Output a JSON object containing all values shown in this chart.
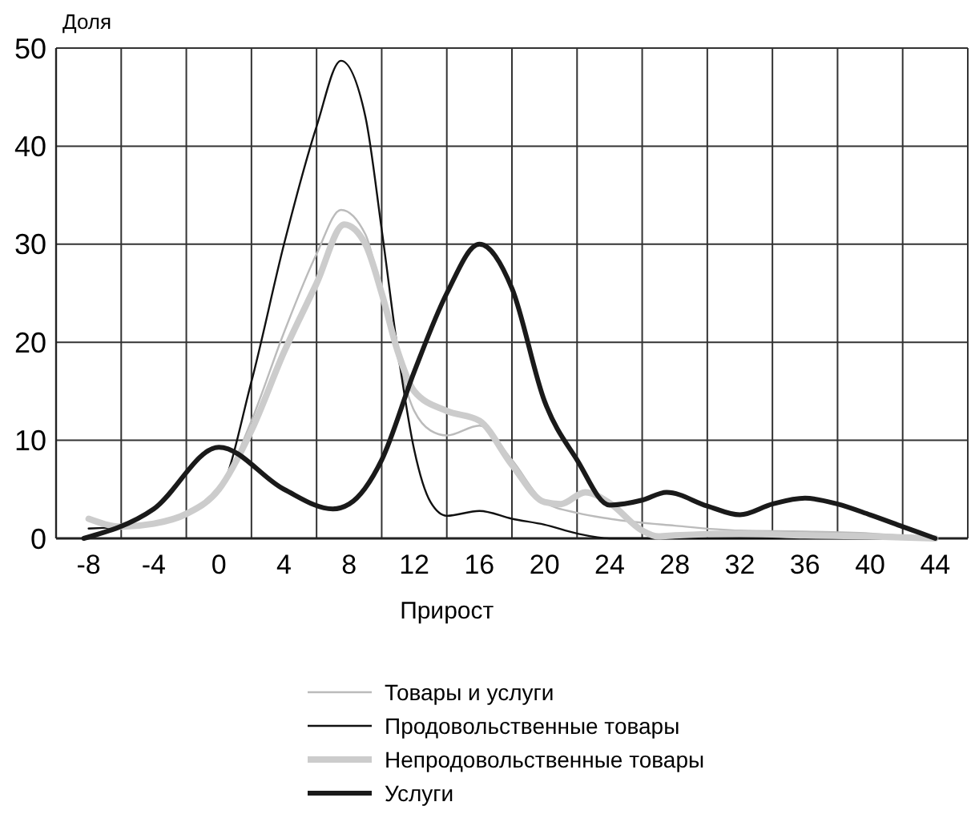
{
  "chart_data": {
    "type": "line",
    "xlabel": "Прирост",
    "ylabel": "Доля",
    "xlim": [
      -10,
      46
    ],
    "xticks": [
      -8,
      -4,
      0,
      4,
      8,
      12,
      16,
      20,
      24,
      28,
      32,
      36,
      40,
      44,
      {
        "value": -6,
        "label": null
      },
      {
        "value": -2,
        "label": null
      },
      {
        "value": 2,
        "label": null
      },
      {
        "value": 6,
        "label": null
      },
      {
        "value": 10,
        "label": null
      },
      {
        "value": 14,
        "label": null
      },
      {
        "value": 18,
        "label": null
      },
      {
        "value": 22,
        "label": null
      },
      {
        "value": 26,
        "label": null
      },
      {
        "value": 30,
        "label": null
      },
      {
        "value": 34,
        "label": null
      },
      {
        "value": 38,
        "label": null
      },
      {
        "value": 42,
        "label": null
      }
    ],
    "ylim": [
      0,
      50
    ],
    "yticks": [
      0,
      10,
      20,
      30,
      40,
      50
    ],
    "grid": true,
    "legend": "bottom",
    "line_style": "solid",
    "marker": "none",
    "series": [
      {
        "name": "Товары и услуги",
        "color": "#bbbbbb",
        "x": [
          -8,
          -4,
          0,
          2,
          4,
          6,
          7.5,
          9,
          10,
          12,
          13,
          14,
          16,
          18,
          20,
          22,
          24,
          28,
          32,
          36,
          40,
          44
        ],
        "values": [
          1,
          1.5,
          5,
          12,
          21,
          29,
          33.5,
          31,
          25,
          13,
          11,
          10.5,
          11.5,
          8,
          3.7,
          2.6,
          2,
          1.3,
          0.8,
          0.7,
          0.5,
          0
        ]
      },
      {
        "name": "Продовольственные товары",
        "color": "#111111",
        "x": [
          -8,
          -4,
          0,
          2,
          4,
          6,
          7.5,
          9,
          10,
          11,
          12,
          13,
          14,
          16,
          18,
          20,
          22,
          24,
          28,
          32,
          36,
          40,
          44
        ],
        "values": [
          1,
          1.5,
          4.8,
          16,
          30,
          42,
          48.7,
          43,
          31.5,
          19,
          9,
          3.7,
          2.3,
          2.8,
          2,
          1.4,
          0.5,
          0,
          0,
          0,
          0,
          0,
          0
        ]
      },
      {
        "name": "Непродовольственные товары",
        "color": "#cccccc",
        "x": [
          -8,
          -6,
          -4,
          -2,
          0,
          2,
          4,
          6,
          7.7,
          9,
          10,
          11,
          12,
          14,
          16,
          18,
          20,
          21,
          22.5,
          24,
          26,
          27,
          28,
          32,
          36,
          40,
          44
        ],
        "values": [
          2,
          1.2,
          1.5,
          2.5,
          5,
          11,
          19,
          26,
          32,
          30,
          25,
          19,
          15,
          13,
          12,
          7.5,
          3.7,
          3.5,
          4.7,
          3.6,
          0.8,
          0.2,
          0.3,
          0.5,
          0.3,
          0.2,
          0
        ]
      },
      {
        "name": "Услуги",
        "color": "#1a1a1a",
        "x": [
          -8.3,
          -4,
          0,
          4,
          7,
          8,
          10,
          12,
          14,
          16,
          18,
          20,
          22,
          24,
          26,
          27.5,
          30,
          32,
          34,
          36,
          38,
          40,
          42,
          44
        ],
        "values": [
          0,
          3,
          9.3,
          5,
          3,
          3.5,
          8,
          17,
          25,
          30,
          25.5,
          14,
          8,
          3.4,
          3.9,
          4.7,
          3.3,
          2.4,
          3.5,
          4.1,
          3.5,
          2.4,
          1.2,
          0
        ]
      }
    ]
  }
}
